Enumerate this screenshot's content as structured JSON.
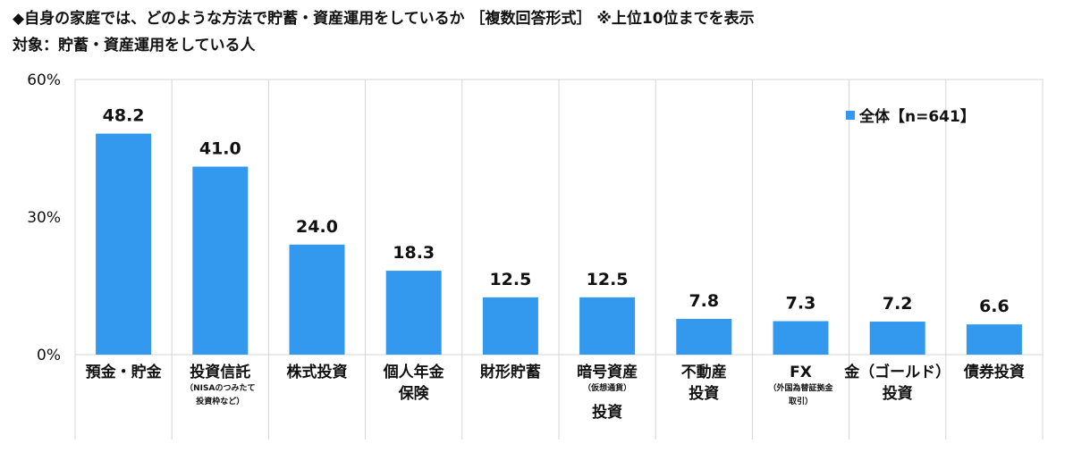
{
  "title": "◆自身の家庭では、どのような方法で貯蓄・資産運用をしているか ［複数回答形式］ ※上位10位までを表示",
  "subtitle": "対象：貯蓄・資産運用をしている人",
  "chart_data": {
    "type": "bar",
    "title": "◆自身の家庭では、どのような方法で貯蓄・資産運用をしているか ［複数回答形式］ ※上位10位までを表示",
    "subtitle": "対象：貯蓄・資産運用をしている人",
    "categories": [
      "預金・貯金",
      "投資信託（NISAのつみたて投資枠など）",
      "株式投資",
      "個人年金保険",
      "財形貯蓄",
      "暗号資産（仮想通貨）投資",
      "不動産投資",
      "FX（外国為替証拠金取引）",
      "金（ゴールド）投資",
      "債券投資"
    ],
    "category_lines": [
      [
        {
          "t": "預金・貯金",
          "s": "main"
        }
      ],
      [
        {
          "t": "投資信託",
          "s": "main"
        },
        {
          "t": "（NISAのつみたて",
          "s": "sub"
        },
        {
          "t": "投資枠など）",
          "s": "sub"
        }
      ],
      [
        {
          "t": "株式投資",
          "s": "main"
        }
      ],
      [
        {
          "t": "個人年金",
          "s": "main"
        },
        {
          "t": "保険",
          "s": "main"
        }
      ],
      [
        {
          "t": "財形貯蓄",
          "s": "main"
        }
      ],
      [
        {
          "t": "暗号資産",
          "s": "main"
        },
        {
          "t": "（仮想通貨）",
          "s": "sub"
        },
        {
          "t": "投資",
          "s": "main"
        }
      ],
      [
        {
          "t": "不動産",
          "s": "main"
        },
        {
          "t": "投資",
          "s": "main"
        }
      ],
      [
        {
          "t": "FX",
          "s": "main"
        },
        {
          "t": "（外国為替証拠金",
          "s": "sub"
        },
        {
          "t": "取引）",
          "s": "sub"
        }
      ],
      [
        {
          "t": "金（ゴールド）",
          "s": "main"
        },
        {
          "t": "投資",
          "s": "main"
        }
      ],
      [
        {
          "t": "債券投資",
          "s": "main"
        }
      ]
    ],
    "series": [
      {
        "name": "全体【n=641】",
        "values": [
          48.2,
          41.0,
          24.0,
          18.3,
          12.5,
          12.5,
          7.8,
          7.3,
          7.2,
          6.6
        ]
      }
    ],
    "value_labels": [
      "48.2",
      "41.0",
      "24.0",
      "18.3",
      "12.5",
      "12.5",
      "7.8",
      "7.3",
      "7.2",
      "6.6"
    ],
    "ylim": [
      0,
      60
    ],
    "yticks": [
      0,
      30,
      60
    ],
    "ytick_labels": [
      "0%",
      "30%",
      "60%"
    ],
    "grid": "vertical category separators",
    "legend_position": "top-right",
    "bar_color": "#3399ee"
  }
}
